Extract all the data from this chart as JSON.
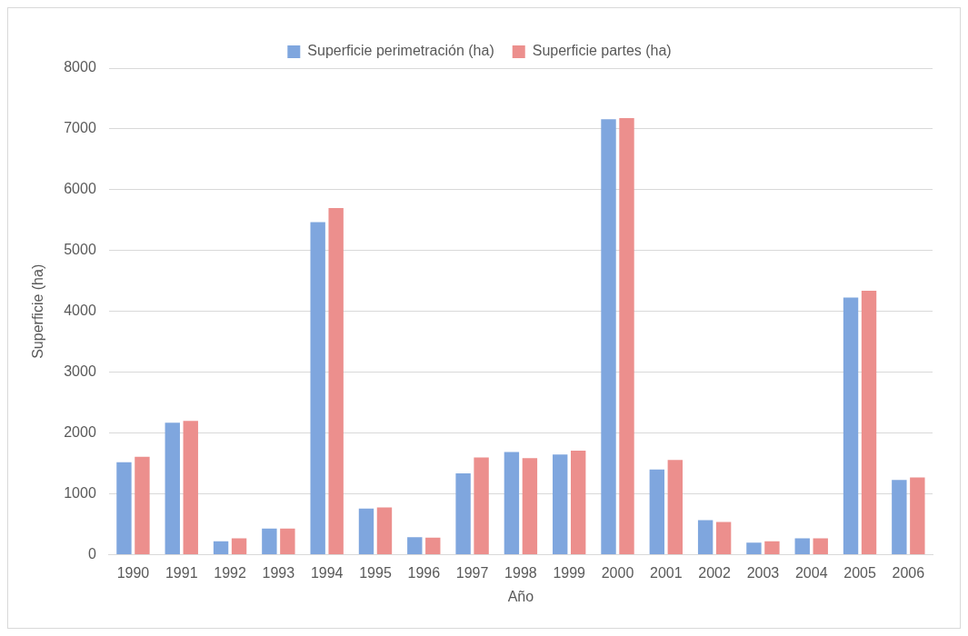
{
  "chart_data": {
    "type": "bar",
    "xlabel": "Año",
    "ylabel": "Superficie (ha)",
    "categories": [
      "1990",
      "1991",
      "1992",
      "1993",
      "1994",
      "1995",
      "1996",
      "1997",
      "1998",
      "1999",
      "2000",
      "2001",
      "2002",
      "2003",
      "2004",
      "2005",
      "2006"
    ],
    "series": [
      {
        "name": "Superficie perimetración (ha)",
        "color": "#7fa6de",
        "values": [
          1520,
          2170,
          220,
          430,
          5470,
          760,
          290,
          1340,
          1690,
          1650,
          7160,
          1400,
          570,
          200,
          270,
          4230,
          1230
        ]
      },
      {
        "name": "Superficie partes (ha)",
        "color": "#ec8f8d",
        "values": [
          1610,
          2200,
          270,
          430,
          5700,
          780,
          280,
          1600,
          1590,
          1710,
          7180,
          1560,
          540,
          220,
          270,
          4340,
          1270
        ]
      }
    ],
    "ylim": [
      0,
      8000
    ],
    "yticks": [
      0,
      1000,
      2000,
      3000,
      4000,
      5000,
      6000,
      7000,
      8000
    ],
    "grid": "y",
    "legend": "top"
  }
}
